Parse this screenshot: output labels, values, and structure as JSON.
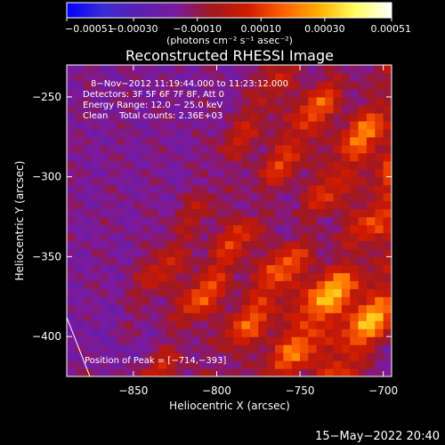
{
  "chart_data": {
    "type": "heatmap",
    "title": "Reconstructed RHESSI Image",
    "xlabel": "Heliocentric X (arcsec)",
    "ylabel": "Heliocentric Y (arcsec)",
    "xlim": [
      -890,
      -695
    ],
    "ylim": [
      -425,
      -230
    ],
    "xticks": [
      -850,
      -800,
      -750,
      -700
    ],
    "yticks": [
      -250,
      -300,
      -350,
      -400
    ],
    "xtick_labels": [
      "−850",
      "−800",
      "−750",
      "−700"
    ],
    "ytick_labels": [
      "−250",
      "−300",
      "−350",
      "−400"
    ],
    "colorbar": {
      "min": -0.00051,
      "max": 0.00051,
      "ticks": [
        -0.00051,
        -0.0003,
        -0.0001,
        0.0001,
        0.0003,
        0.00051
      ],
      "tick_labels": [
        "−0.00051",
        "−0.00030",
        "−0.00010",
        "0.00010",
        "0.00030",
        "0.00051"
      ],
      "unit_label": "(photons cm⁻² s⁻¹ asec⁻²)"
    },
    "annotations": {
      "time": "8−Nov−2012 11:19:44.000 to 11:23:12.000",
      "detectors": "Detectors: 3F 5F 6F 7F 8F, Att 0",
      "energy": "Energy Range: 12.0 − 25.0 keV",
      "method": "Clean    Total counts: 2.36E+03",
      "peak": "Position of Peak = [−714,−393]"
    },
    "peak": {
      "x": -714,
      "y": -393
    },
    "ridges": [
      {
        "x0": -872,
        "slope": 0.58,
        "amp": 0.00022,
        "width": 9
      },
      {
        "x0": -838,
        "slope": 0.58,
        "amp": 0.00035,
        "width": 9
      },
      {
        "x0": -800,
        "slope": 0.58,
        "amp": 0.00038,
        "width": 10
      },
      {
        "x0": -762,
        "slope": 0.58,
        "amp": 0.0005,
        "width": 11
      },
      {
        "x0": -728,
        "slope": 0.58,
        "amp": 0.00047,
        "width": 10
      }
    ],
    "limb_point": {
      "x": -878,
      "y": -388
    }
  },
  "footer": {
    "date": "15−May−2022 20:40"
  },
  "colors": {
    "background": "#000000",
    "text": "#ffffff",
    "colormap": [
      "#0000ff",
      "#3a2ad6",
      "#5a1fb0",
      "#7a1aa0",
      "#a01820",
      "#d01a00",
      "#ff6000",
      "#ffb000",
      "#ffff60",
      "#ffffff"
    ]
  }
}
